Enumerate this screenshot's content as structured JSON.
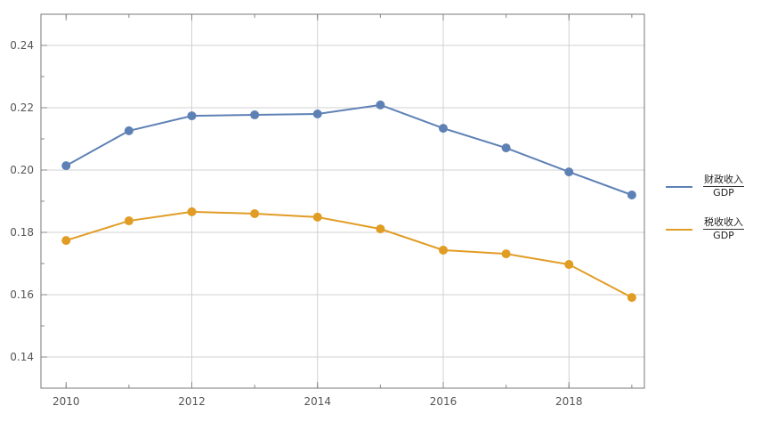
{
  "chart_data": {
    "type": "line",
    "x": [
      2010,
      2011,
      2012,
      2013,
      2014,
      2015,
      2016,
      2017,
      2018,
      2019
    ],
    "series": [
      {
        "name": "财政收入 / GDP",
        "numerator": "财政收入",
        "denominator": "GDP",
        "color": "#5e81b5",
        "values": [
          0.2014,
          0.2126,
          0.2174,
          0.2177,
          0.218,
          0.2209,
          0.2134,
          0.2071,
          0.1994,
          0.192
        ]
      },
      {
        "name": "税收收入 / GDP",
        "numerator": "税收收入",
        "denominator": "GDP",
        "color": "#e19c24",
        "values": [
          0.1774,
          0.1837,
          0.1866,
          0.186,
          0.1849,
          0.1811,
          0.1743,
          0.1731,
          0.1697,
          0.1591
        ]
      }
    ],
    "xticks": [
      "2010",
      "2012",
      "2014",
      "2016",
      "2018"
    ],
    "yticks": [
      "0.14",
      "0.16",
      "0.18",
      "0.20",
      "0.22",
      "0.24"
    ],
    "xlim": [
      2009.6,
      2019.2
    ],
    "ylim": [
      0.13,
      0.25
    ],
    "grid": true,
    "legend_position": "right",
    "title": "",
    "xlabel": "",
    "ylabel": ""
  }
}
